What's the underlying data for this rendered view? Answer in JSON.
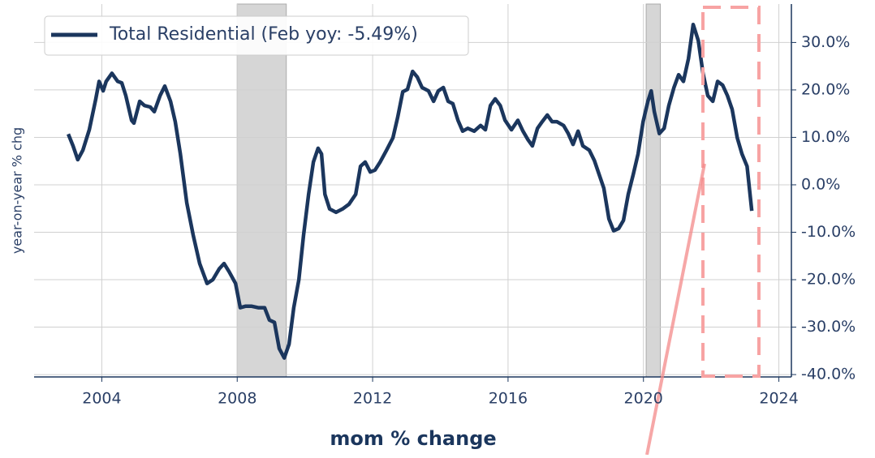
{
  "chart_data": {
    "type": "line",
    "xlabel": "mom % change",
    "ylabel": "year-on-year % chg",
    "xlim": [
      2002,
      2024.37
    ],
    "ylim": [
      -40.5,
      38.1
    ],
    "xticks": [
      2004,
      2008,
      2012,
      2016,
      2020,
      2024
    ],
    "yticks": [
      {
        "value": -40,
        "label": "-40.0%"
      },
      {
        "value": -30,
        "label": "-30.0%"
      },
      {
        "value": -20,
        "label": "-20.0%"
      },
      {
        "value": -10,
        "label": "-10.0%"
      },
      {
        "value": 0,
        "label": "0.0%"
      },
      {
        "value": 10,
        "label": "10.0%"
      },
      {
        "value": 20,
        "label": "20.0%"
      },
      {
        "value": 30,
        "label": "30.0%"
      }
    ],
    "grid": true,
    "legend": "upper left",
    "shaded_regions": [
      [
        2008.0,
        2009.45
      ],
      [
        2020.08,
        2020.5
      ]
    ],
    "shade_color": "#d6d6d6",
    "series": [
      {
        "name": "Total Residential (Feb yoy: -5.49%)",
        "color": "#1b365d",
        "x": [
          2003.01,
          2003.15,
          2003.29,
          2003.44,
          2003.63,
          2003.82,
          2003.92,
          2004.04,
          2004.13,
          2004.3,
          2004.47,
          2004.59,
          2004.71,
          2004.88,
          2004.95,
          2005.12,
          2005.26,
          2005.43,
          2005.55,
          2005.72,
          2005.86,
          2006.03,
          2006.17,
          2006.32,
          2006.51,
          2006.7,
          2006.89,
          2007.11,
          2007.28,
          2007.47,
          2007.61,
          2007.76,
          2007.95,
          2008.09,
          2008.24,
          2008.43,
          2008.62,
          2008.81,
          2008.95,
          2009.1,
          2009.24,
          2009.39,
          2009.53,
          2009.67,
          2009.82,
          2009.96,
          2010.11,
          2010.25,
          2010.39,
          2010.49,
          2010.59,
          2010.73,
          2010.92,
          2011.11,
          2011.3,
          2011.5,
          2011.64,
          2011.78,
          2011.93,
          2012.07,
          2012.22,
          2012.41,
          2012.6,
          2012.74,
          2012.89,
          2013.03,
          2013.18,
          2013.32,
          2013.46,
          2013.65,
          2013.8,
          2013.94,
          2014.09,
          2014.23,
          2014.37,
          2014.52,
          2014.66,
          2014.81,
          2015.0,
          2015.19,
          2015.33,
          2015.48,
          2015.62,
          2015.77,
          2015.91,
          2016.1,
          2016.29,
          2016.44,
          2016.58,
          2016.72,
          2016.87,
          2017.01,
          2017.16,
          2017.3,
          2017.44,
          2017.64,
          2017.78,
          2017.92,
          2018.07,
          2018.21,
          2018.4,
          2018.55,
          2018.69,
          2018.83,
          2018.98,
          2019.12,
          2019.27,
          2019.41,
          2019.55,
          2019.7,
          2019.84,
          2019.99,
          2020.13,
          2020.23,
          2020.32,
          2020.47,
          2020.61,
          2020.75,
          2020.9,
          2021.04,
          2021.18,
          2021.33,
          2021.47,
          2021.62,
          2021.76,
          2021.9,
          2022.05,
          2022.19,
          2022.34,
          2022.48,
          2022.62,
          2022.77,
          2022.91,
          2023.06,
          2023.2
        ],
        "values": [
          10.7,
          8.2,
          5.3,
          7.3,
          11.6,
          18,
          21.8,
          19.8,
          21.8,
          23.5,
          21.8,
          21.5,
          18.8,
          13.6,
          13,
          17.6,
          16.7,
          16.4,
          15.4,
          18.8,
          20.8,
          17.6,
          13.3,
          6.5,
          -3.8,
          -10.6,
          -16.6,
          -20.8,
          -20,
          -17.7,
          -16.6,
          -18.3,
          -20.8,
          -25.9,
          -25.6,
          -25.6,
          -25.9,
          -25.9,
          -28.5,
          -29,
          -34.5,
          -36.5,
          -33.6,
          -25.9,
          -20,
          -10.6,
          -2,
          4.8,
          7.7,
          6.5,
          -2,
          -5.1,
          -5.8,
          -5.1,
          -4.1,
          -2,
          3.9,
          4.8,
          2.7,
          3.1,
          4.8,
          7.3,
          9.9,
          14.2,
          19.6,
          20.1,
          23.9,
          22.7,
          20.5,
          19.8,
          17.6,
          19.8,
          20.5,
          17.6,
          17.1,
          13.6,
          11.3,
          11.9,
          11.3,
          12.5,
          11.6,
          16.7,
          18.1,
          16.7,
          13.6,
          11.6,
          13.6,
          11.3,
          9.6,
          8.2,
          11.9,
          13.3,
          14.7,
          13.3,
          13.3,
          12.5,
          10.8,
          8.5,
          11.3,
          8.2,
          7.3,
          5.1,
          2.2,
          -0.7,
          -7.2,
          -9.7,
          -9.2,
          -7.5,
          -2,
          2.2,
          6.5,
          13.3,
          17.6,
          19.8,
          15.4,
          10.8,
          11.9,
          16.7,
          20.5,
          23.2,
          21.8,
          26.6,
          33.8,
          30.4,
          23.5,
          18.8,
          17.6,
          21.8,
          21,
          18.8,
          15.9,
          9.9,
          6.5,
          3.9,
          -5.49
        ]
      }
    ]
  }
}
